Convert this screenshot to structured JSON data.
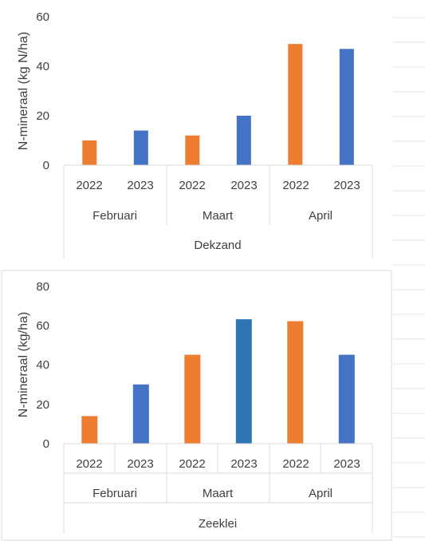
{
  "colors": {
    "year2022": "#ED7D31",
    "year2023": "#4472C4",
    "year2023_alt": "#2E75B6"
  },
  "chart_data": [
    {
      "type": "bar",
      "title": "",
      "ylabel": "N-mineraal (kg N/ha)",
      "ylim": [
        0,
        60
      ],
      "yticks": [
        "0",
        "20",
        "40",
        "60"
      ],
      "group_label": "Dekzand",
      "months": [
        "Februari",
        "Maart",
        "April"
      ],
      "categories": [
        "2022",
        "2023",
        "2022",
        "2023",
        "2022",
        "2023"
      ],
      "values": [
        10,
        14,
        12,
        20,
        49,
        47
      ],
      "bar_colors": [
        "#ED7D31",
        "#4472C4",
        "#ED7D31",
        "#4472C4",
        "#ED7D31",
        "#4472C4"
      ],
      "grid": false,
      "legend": "none"
    },
    {
      "type": "bar",
      "title": "",
      "ylabel": "N-mineraal (kg/ha)",
      "ylim": [
        0,
        80
      ],
      "yticks": [
        "0",
        "20",
        "40",
        "60",
        "80"
      ],
      "group_label": "Zeeklei",
      "months": [
        "Februari",
        "Maart",
        "April"
      ],
      "categories": [
        "2022",
        "2023",
        "2022",
        "2023",
        "2022",
        "2023"
      ],
      "values": [
        14,
        30,
        45,
        63,
        62,
        45
      ],
      "bar_colors": [
        "#ED7D31",
        "#4472C4",
        "#ED7D31",
        "#2E75B6",
        "#ED7D31",
        "#4472C4"
      ],
      "grid": false,
      "legend": "none"
    }
  ]
}
